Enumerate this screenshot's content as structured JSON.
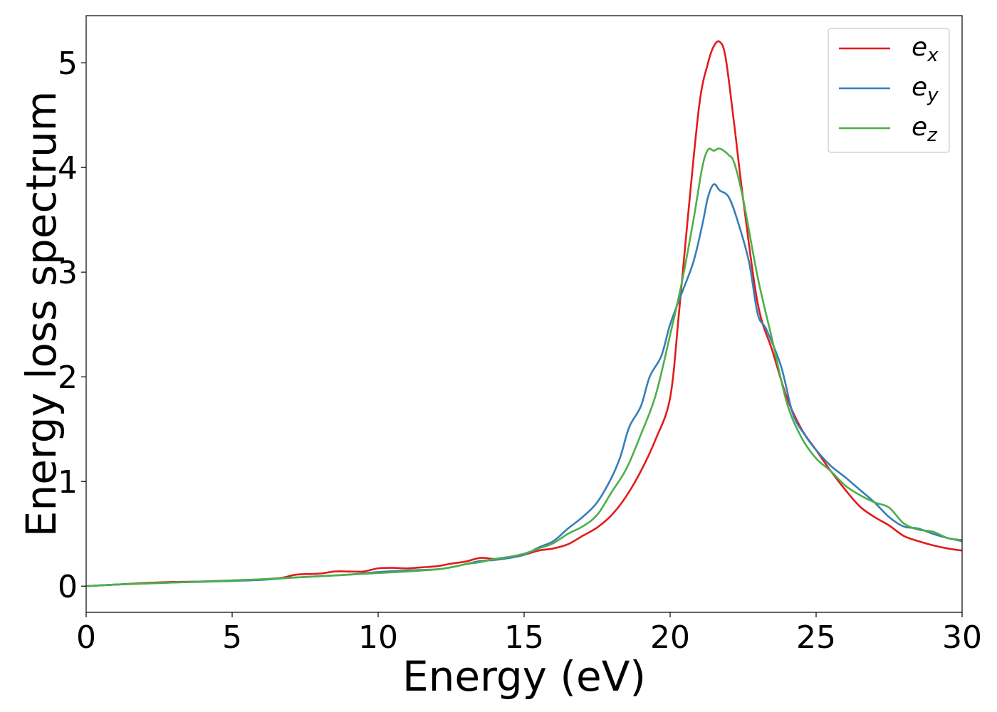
{
  "chart_data": {
    "type": "line",
    "title": "",
    "xlabel": "Energy (eV)",
    "ylabel": "Energy loss spectrum",
    "xlim": [
      0,
      30
    ],
    "ylim": [
      -0.25,
      5.45
    ],
    "xticks": [
      0,
      5,
      10,
      15,
      20,
      25,
      30
    ],
    "yticks": [
      0,
      1,
      2,
      3,
      4,
      5
    ],
    "grid": false,
    "legend_position": "top-right",
    "series": [
      {
        "name_base": "e",
        "name_sub": "x",
        "color": "#e41a1c",
        "points": [
          [
            0,
            0.0
          ],
          [
            1,
            0.015
          ],
          [
            2,
            0.03
          ],
          [
            3,
            0.04
          ],
          [
            4,
            0.045
          ],
          [
            5,
            0.055
          ],
          [
            6,
            0.065
          ],
          [
            6.7,
            0.08
          ],
          [
            7.2,
            0.11
          ],
          [
            8,
            0.12
          ],
          [
            8.5,
            0.14
          ],
          [
            9,
            0.14
          ],
          [
            9.5,
            0.14
          ],
          [
            10,
            0.17
          ],
          [
            10.5,
            0.175
          ],
          [
            11,
            0.17
          ],
          [
            11.5,
            0.18
          ],
          [
            12,
            0.19
          ],
          [
            12.5,
            0.215
          ],
          [
            13,
            0.235
          ],
          [
            13.5,
            0.27
          ],
          [
            14,
            0.26
          ],
          [
            14.5,
            0.27
          ],
          [
            15,
            0.3
          ],
          [
            15.5,
            0.34
          ],
          [
            16,
            0.36
          ],
          [
            16.5,
            0.4
          ],
          [
            17,
            0.48
          ],
          [
            17.5,
            0.56
          ],
          [
            18,
            0.68
          ],
          [
            18.5,
            0.86
          ],
          [
            19,
            1.1
          ],
          [
            19.5,
            1.4
          ],
          [
            20,
            1.8
          ],
          [
            20.3,
            2.6
          ],
          [
            20.6,
            3.5
          ],
          [
            21,
            4.6
          ],
          [
            21.3,
            5.0
          ],
          [
            21.5,
            5.16
          ],
          [
            21.7,
            5.2
          ],
          [
            21.9,
            5.05
          ],
          [
            22.2,
            4.4
          ],
          [
            22.5,
            3.7
          ],
          [
            23,
            2.7
          ],
          [
            23.5,
            2.25
          ],
          [
            24,
            1.8
          ],
          [
            24.5,
            1.5
          ],
          [
            25,
            1.3
          ],
          [
            25.5,
            1.1
          ],
          [
            26,
            0.92
          ],
          [
            26.5,
            0.76
          ],
          [
            27,
            0.66
          ],
          [
            27.5,
            0.58
          ],
          [
            28,
            0.48
          ],
          [
            28.5,
            0.43
          ],
          [
            29,
            0.39
          ],
          [
            29.5,
            0.36
          ],
          [
            30,
            0.34
          ]
        ]
      },
      {
        "name_base": "e",
        "name_sub": "y",
        "color": "#377eb8",
        "points": [
          [
            0,
            0.0
          ],
          [
            1,
            0.015
          ],
          [
            2,
            0.025
          ],
          [
            3,
            0.035
          ],
          [
            4,
            0.042
          ],
          [
            5,
            0.05
          ],
          [
            6,
            0.06
          ],
          [
            7,
            0.08
          ],
          [
            8,
            0.095
          ],
          [
            9,
            0.11
          ],
          [
            10,
            0.135
          ],
          [
            11,
            0.15
          ],
          [
            12,
            0.16
          ],
          [
            12.5,
            0.18
          ],
          [
            13,
            0.21
          ],
          [
            13.5,
            0.24
          ],
          [
            14,
            0.25
          ],
          [
            14.5,
            0.27
          ],
          [
            15,
            0.3
          ],
          [
            15.5,
            0.37
          ],
          [
            16,
            0.43
          ],
          [
            16.5,
            0.55
          ],
          [
            17,
            0.66
          ],
          [
            17.5,
            0.8
          ],
          [
            18,
            1.04
          ],
          [
            18.3,
            1.24
          ],
          [
            18.6,
            1.52
          ],
          [
            19,
            1.72
          ],
          [
            19.3,
            2.0
          ],
          [
            19.7,
            2.2
          ],
          [
            20,
            2.5
          ],
          [
            20.4,
            2.8
          ],
          [
            20.8,
            3.1
          ],
          [
            21.1,
            3.45
          ],
          [
            21.3,
            3.72
          ],
          [
            21.5,
            3.84
          ],
          [
            21.7,
            3.78
          ],
          [
            22,
            3.72
          ],
          [
            22.3,
            3.5
          ],
          [
            22.7,
            3.1
          ],
          [
            23,
            2.6
          ],
          [
            23.3,
            2.45
          ],
          [
            23.8,
            2.1
          ],
          [
            24.2,
            1.65
          ],
          [
            24.6,
            1.45
          ],
          [
            25,
            1.3
          ],
          [
            25.5,
            1.15
          ],
          [
            26,
            1.04
          ],
          [
            26.5,
            0.92
          ],
          [
            27,
            0.8
          ],
          [
            27.5,
            0.66
          ],
          [
            28,
            0.57
          ],
          [
            28.5,
            0.55
          ],
          [
            29,
            0.5
          ],
          [
            29.5,
            0.46
          ],
          [
            30,
            0.43
          ]
        ]
      },
      {
        "name_base": "e",
        "name_sub": "z",
        "color": "#4daf4a",
        "points": [
          [
            0,
            0.0
          ],
          [
            1,
            0.015
          ],
          [
            2,
            0.025
          ],
          [
            3,
            0.035
          ],
          [
            4,
            0.045
          ],
          [
            5,
            0.055
          ],
          [
            6,
            0.065
          ],
          [
            7,
            0.08
          ],
          [
            8,
            0.095
          ],
          [
            9,
            0.11
          ],
          [
            10,
            0.125
          ],
          [
            11,
            0.14
          ],
          [
            12,
            0.16
          ],
          [
            12.5,
            0.18
          ],
          [
            13,
            0.21
          ],
          [
            13.5,
            0.23
          ],
          [
            14,
            0.26
          ],
          [
            14.5,
            0.28
          ],
          [
            15,
            0.31
          ],
          [
            15.5,
            0.36
          ],
          [
            16,
            0.41
          ],
          [
            16.5,
            0.5
          ],
          [
            17,
            0.57
          ],
          [
            17.5,
            0.68
          ],
          [
            18,
            0.9
          ],
          [
            18.5,
            1.12
          ],
          [
            19,
            1.45
          ],
          [
            19.5,
            1.82
          ],
          [
            20,
            2.4
          ],
          [
            20.4,
            2.9
          ],
          [
            20.8,
            3.5
          ],
          [
            21.1,
            4.0
          ],
          [
            21.3,
            4.17
          ],
          [
            21.5,
            4.16
          ],
          [
            21.7,
            4.18
          ],
          [
            22,
            4.12
          ],
          [
            22.2,
            4.04
          ],
          [
            22.5,
            3.7
          ],
          [
            23,
            2.95
          ],
          [
            23.5,
            2.35
          ],
          [
            24,
            1.75
          ],
          [
            24.5,
            1.42
          ],
          [
            25,
            1.22
          ],
          [
            25.5,
            1.1
          ],
          [
            26,
            0.96
          ],
          [
            26.5,
            0.87
          ],
          [
            27,
            0.8
          ],
          [
            27.5,
            0.75
          ],
          [
            28,
            0.6
          ],
          [
            28.5,
            0.54
          ],
          [
            29,
            0.52
          ],
          [
            29.5,
            0.46
          ],
          [
            30,
            0.44
          ]
        ]
      }
    ]
  }
}
